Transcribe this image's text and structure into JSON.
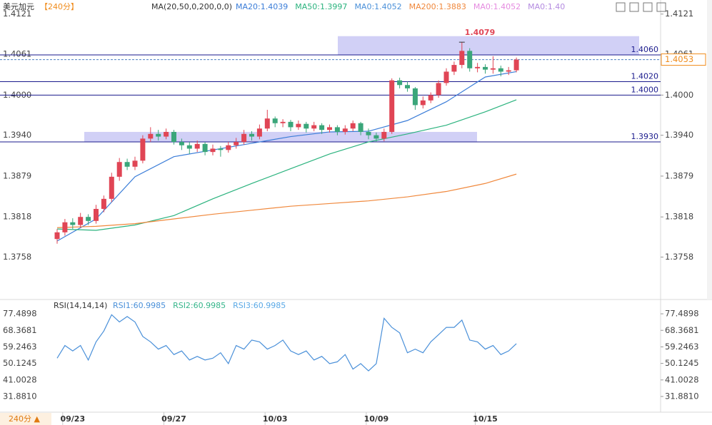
{
  "chart_data": {
    "type": "candlestick",
    "symbol": "美元加元",
    "period": "【240分】",
    "ma_header": "MA(20,50,0,200,0,0)",
    "legend": [
      {
        "name": "MA20:1.4039",
        "color": "#3b7dd8"
      },
      {
        "name": "MA50:1.3997",
        "color": "#2bb37e"
      },
      {
        "name": "MA0:1.4052",
        "color": "#4a90d9"
      },
      {
        "name": "MA200:1.3883",
        "color": "#f0883c"
      },
      {
        "name": "MA0:1.4052",
        "color": "#e58be0"
      },
      {
        "name": "MA0:1.40",
        "color": "#b48be0"
      }
    ],
    "up_color": "#e04555",
    "down_color": "#3aa67a",
    "categories": [
      null,
      null,
      "09/23",
      null,
      null,
      null,
      null,
      null,
      null,
      null,
      null,
      null,
      null,
      null,
      null,
      "09/27",
      null,
      null,
      null,
      null,
      null,
      null,
      null,
      null,
      null,
      null,
      null,
      null,
      "10/03",
      null,
      null,
      null,
      null,
      null,
      null,
      null,
      null,
      null,
      null,
      null,
      null,
      "10/09",
      null,
      null,
      null,
      null,
      null,
      null,
      null,
      null,
      null,
      null,
      null,
      null,
      null,
      "10/15",
      null,
      null,
      null,
      null
    ],
    "ohlc": [
      [
        1.3785,
        1.38,
        1.3778,
        1.3795
      ],
      [
        1.3795,
        1.3815,
        1.379,
        1.381
      ],
      [
        1.381,
        1.3816,
        1.38,
        1.3806
      ],
      [
        1.3806,
        1.3824,
        1.3802,
        1.3818
      ],
      [
        1.3818,
        1.3822,
        1.3806,
        1.3812
      ],
      [
        1.3812,
        1.3836,
        1.3808,
        1.383
      ],
      [
        1.383,
        1.385,
        1.3825,
        1.3845
      ],
      [
        1.3845,
        1.3884,
        1.384,
        1.3878
      ],
      [
        1.3878,
        1.3906,
        1.3872,
        1.39
      ],
      [
        1.39,
        1.3905,
        1.3888,
        1.3893
      ],
      [
        1.3893,
        1.3908,
        1.3888,
        1.3902
      ],
      [
        1.3902,
        1.394,
        1.3898,
        1.3935
      ],
      [
        1.3935,
        1.3952,
        1.393,
        1.3942
      ],
      [
        1.3942,
        1.3948,
        1.3932,
        1.3938
      ],
      [
        1.3938,
        1.395,
        1.3934,
        1.3945
      ],
      [
        1.3945,
        1.3948,
        1.3926,
        1.393
      ],
      [
        1.393,
        1.3935,
        1.3918,
        1.3925
      ],
      [
        1.3925,
        1.393,
        1.3912,
        1.392
      ],
      [
        1.392,
        1.3932,
        1.3915,
        1.3927
      ],
      [
        1.3927,
        1.393,
        1.391,
        1.3915
      ],
      [
        1.3915,
        1.3926,
        1.391,
        1.392
      ],
      [
        1.392,
        1.3924,
        1.3908,
        1.3918
      ],
      [
        1.3918,
        1.393,
        1.3914,
        1.3925
      ],
      [
        1.3925,
        1.3936,
        1.392,
        1.393
      ],
      [
        1.393,
        1.3948,
        1.3926,
        1.3942
      ],
      [
        1.3942,
        1.3946,
        1.3932,
        1.3938
      ],
      [
        1.3938,
        1.3956,
        1.3934,
        1.395
      ],
      [
        1.395,
        1.3978,
        1.3946,
        1.3965
      ],
      [
        1.3965,
        1.3968,
        1.3952,
        1.3958
      ],
      [
        1.3958,
        1.3964,
        1.3952,
        1.396
      ],
      [
        1.396,
        1.3963,
        1.3946,
        1.3952
      ],
      [
        1.3952,
        1.3962,
        1.3948,
        1.3957
      ],
      [
        1.3957,
        1.396,
        1.3944,
        1.395
      ],
      [
        1.395,
        1.396,
        1.3946,
        1.3955
      ],
      [
        1.3955,
        1.3958,
        1.3942,
        1.3948
      ],
      [
        1.3948,
        1.3956,
        1.3944,
        1.3952
      ],
      [
        1.3952,
        1.3955,
        1.394,
        1.3945
      ],
      [
        1.3945,
        1.3955,
        1.3941,
        1.395
      ],
      [
        1.395,
        1.3962,
        1.3946,
        1.3958
      ],
      [
        1.3958,
        1.396,
        1.394,
        1.3945
      ],
      [
        1.3945,
        1.395,
        1.3934,
        1.394
      ],
      [
        1.394,
        1.3944,
        1.393,
        1.3935
      ],
      [
        1.3935,
        1.395,
        1.3931,
        1.3945
      ],
      [
        1.3945,
        1.4025,
        1.3942,
        1.4022
      ],
      [
        1.4022,
        1.4026,
        1.401,
        1.4015
      ],
      [
        1.4015,
        1.402,
        1.4005,
        1.401
      ],
      [
        1.401,
        1.4012,
        1.3978,
        1.3985
      ],
      [
        1.3985,
        1.3998,
        1.398,
        1.3992
      ],
      [
        1.3992,
        1.4004,
        1.3988,
        1.4
      ],
      [
        1.4,
        1.4022,
        1.3996,
        1.4018
      ],
      [
        1.4018,
        1.404,
        1.4014,
        1.4035
      ],
      [
        1.4035,
        1.405,
        1.403,
        1.4045
      ],
      [
        1.4045,
        1.4079,
        1.404,
        1.4066
      ],
      [
        1.4066,
        1.407,
        1.4035,
        1.404
      ],
      [
        1.404,
        1.4048,
        1.4034,
        1.4042
      ],
      [
        1.4042,
        1.4046,
        1.4032,
        1.4038
      ],
      [
        1.4038,
        1.4058,
        1.4032,
        1.404
      ],
      [
        1.404,
        1.4044,
        1.4028,
        1.4035
      ],
      [
        1.4035,
        1.4042,
        1.403,
        1.4037
      ],
      [
        1.4037,
        1.4056,
        1.4034,
        1.4053
      ]
    ],
    "ma_lines": [
      {
        "legend": 0,
        "x": [
          0,
          5,
          10,
          15,
          20,
          25,
          30,
          35,
          40,
          45,
          50,
          55,
          59
        ],
        "values": [
          1.3782,
          1.3815,
          1.3878,
          1.3908,
          1.3918,
          1.3928,
          1.3938,
          1.3945,
          1.3946,
          1.3962,
          1.399,
          1.4027,
          1.4035
        ]
      },
      {
        "legend": 1,
        "x": [
          0,
          5,
          10,
          15,
          20,
          25,
          30,
          35,
          40,
          45,
          50,
          55,
          59
        ],
        "values": [
          1.38,
          1.3798,
          1.3806,
          1.382,
          1.3845,
          1.3868,
          1.389,
          1.3912,
          1.393,
          1.3942,
          1.3955,
          1.3975,
          1.3993
        ]
      },
      {
        "legend": 3,
        "x": [
          0,
          5,
          10,
          15,
          20,
          25,
          30,
          35,
          40,
          45,
          50,
          55,
          59
        ],
        "values": [
          1.3802,
          1.3804,
          1.3808,
          1.3815,
          1.3822,
          1.3828,
          1.3834,
          1.3838,
          1.3842,
          1.3848,
          1.3856,
          1.3868,
          1.3882
        ]
      }
    ],
    "ylim": [
      1.37,
      1.4142
    ],
    "yticks": [
      {
        "value": 1.4121,
        "label": "1.4121"
      },
      {
        "value": 1.4061,
        "label": "1.4061"
      },
      {
        "value": 1.4,
        "label": "1.4000"
      },
      {
        "value": 1.394,
        "label": "1.3940"
      },
      {
        "value": 1.3879,
        "label": "1.3879"
      },
      {
        "value": 1.3818,
        "label": "1.3818"
      },
      {
        "value": 1.3758,
        "label": "1.3758"
      }
    ],
    "levels": [
      {
        "value": 1.406,
        "label": "1.4060"
      },
      {
        "value": 1.402,
        "label": "1.4020"
      },
      {
        "value": 1.4,
        "label": "1.4000"
      },
      {
        "value": 1.393,
        "label": "1.3930"
      }
    ],
    "zones": [
      [
        1.406,
        1.4088
      ],
      [
        1.393,
        1.3945
      ]
    ],
    "current_price": {
      "value": 1.4053,
      "label": "1.4053"
    },
    "high_annotation": {
      "value": 1.4079,
      "label": "1.4079"
    },
    "rsi": {
      "header": "RSI(14,14,14)",
      "legend": [
        {
          "name": "RSI1:60.9985",
          "color": "#4a90d9"
        },
        {
          "name": "RSI2:60.9985",
          "color": "#35b58a"
        },
        {
          "name": "RSI3:60.9985",
          "color": "#5aa9e6"
        }
      ],
      "color": "#4a90d9",
      "values": [
        53,
        60,
        57,
        60,
        52,
        62,
        68,
        77,
        73,
        76,
        73,
        65,
        62,
        58,
        60,
        55,
        57,
        52,
        54,
        52,
        53,
        56,
        50,
        60,
        58,
        63,
        62,
        58,
        60,
        63,
        57,
        55,
        57,
        52,
        54,
        50,
        51,
        55,
        47,
        50,
        46,
        50,
        75,
        70,
        67,
        56,
        58,
        56,
        62,
        66,
        70,
        70,
        74,
        63,
        62,
        58,
        60,
        55,
        57,
        61
      ],
      "ylim": [
        24.4,
        84.6
      ],
      "yticks": [
        {
          "value": 77.4898,
          "label": "77.4898"
        },
        {
          "value": 68.3681,
          "label": "68.3681"
        },
        {
          "value": 59.2463,
          "label": "59.2463"
        },
        {
          "value": 50.1245,
          "label": "50.1245"
        },
        {
          "value": 41.0028,
          "label": "41.0028"
        },
        {
          "value": 31.881,
          "label": "31.8810"
        }
      ]
    },
    "period_button": "240分 ▲"
  }
}
